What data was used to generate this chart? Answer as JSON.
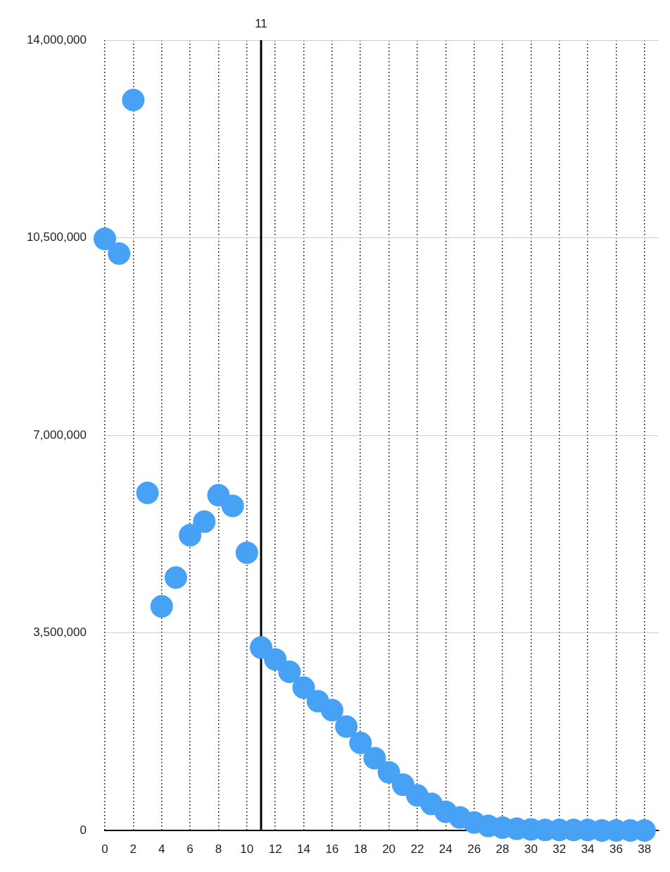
{
  "chart_data": {
    "type": "scatter",
    "x": [
      0,
      1,
      2,
      3,
      4,
      5,
      6,
      7,
      8,
      9,
      10,
      11,
      12,
      13,
      14,
      15,
      16,
      17,
      18,
      19,
      20,
      21,
      22,
      23,
      24,
      25,
      26,
      27,
      28,
      29,
      30,
      31,
      32,
      33,
      34,
      35,
      36,
      37,
      38
    ],
    "series": [
      {
        "color": "#47a1f5",
        "values": [
          10480000,
          10220000,
          12940000,
          5980000,
          3970000,
          4480000,
          5230000,
          5470000,
          5940000,
          5750000,
          4920000,
          3240000,
          3030000,
          2810000,
          2530000,
          2290000,
          2130000,
          1840000,
          1550000,
          1280000,
          1030000,
          810000,
          620000,
          470000,
          330000,
          230000,
          140000,
          80000,
          50000,
          30000,
          20000,
          10000,
          10000,
          10000,
          10000,
          0,
          0,
          0,
          0
        ]
      }
    ],
    "xlim": [
      0,
      39
    ],
    "xticks": [
      0,
      2,
      4,
      6,
      8,
      10,
      12,
      14,
      16,
      18,
      20,
      22,
      24,
      26,
      28,
      30,
      32,
      34,
      36,
      38
    ],
    "ylim": [
      0,
      14000000
    ],
    "yticks": [
      {
        "value": 0,
        "label": "0"
      },
      {
        "value": 3500000,
        "label": "3,500,000"
      },
      {
        "value": 7000000,
        "label": "7,000,000"
      },
      {
        "value": 10500000,
        "label": "10,500,000"
      },
      {
        "value": 14000000,
        "label": "14,000,000"
      }
    ],
    "grid": true,
    "marker": "circle",
    "ref_lines": [
      {
        "axis": "x",
        "value": 11,
        "label": "11",
        "color": "#000000"
      }
    ]
  }
}
